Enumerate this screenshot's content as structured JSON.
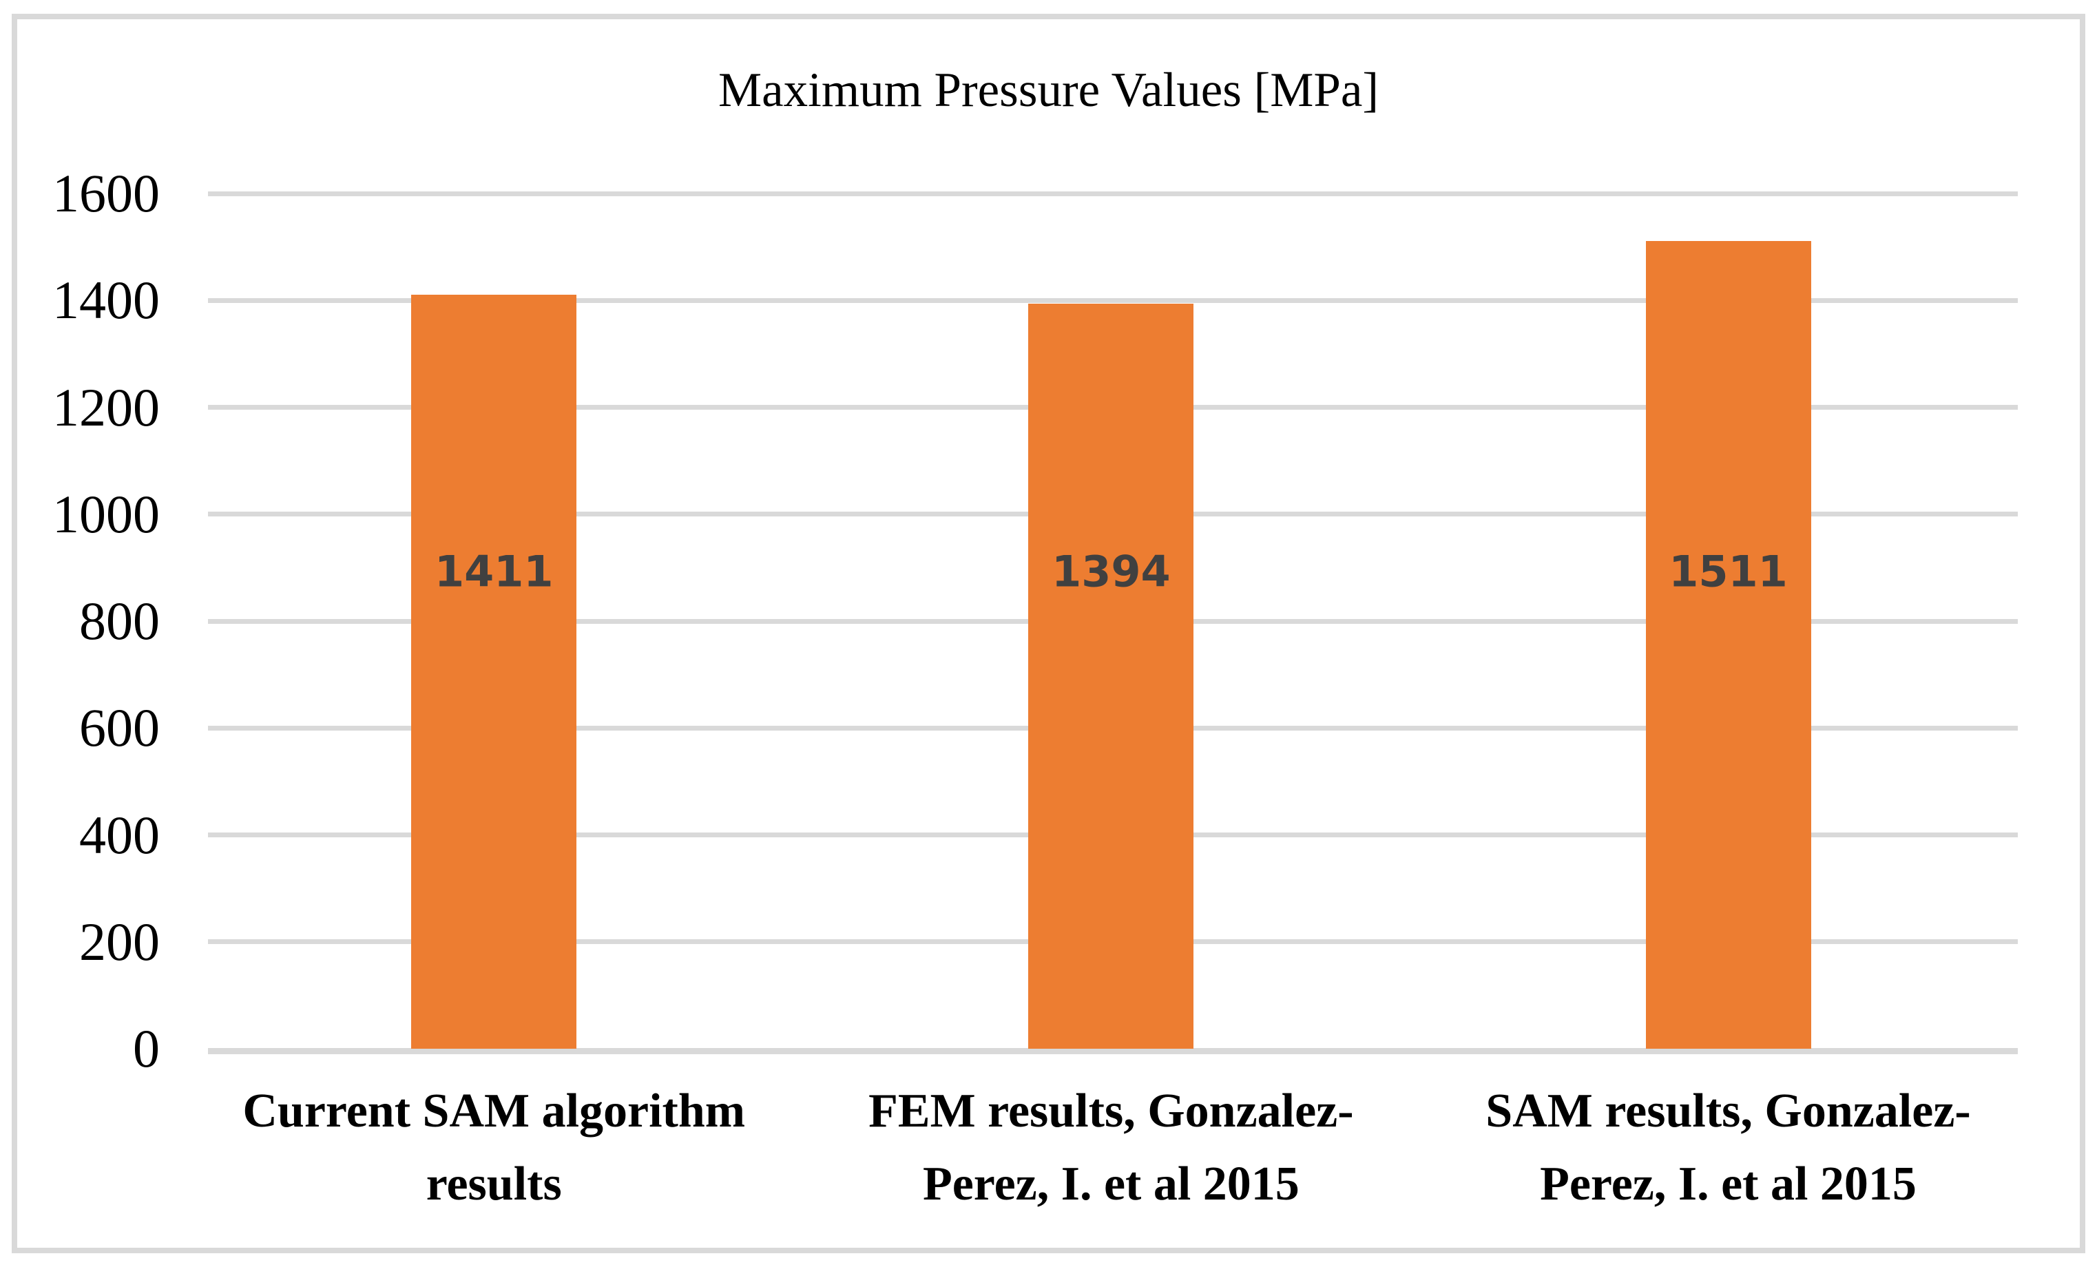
{
  "chart": {
    "title": "Maximum Pressure Values [MPa]"
  },
  "chart_data": {
    "type": "bar",
    "title": "Maximum Pressure Values [MPa]",
    "categories": [
      "Current SAM algorithm results",
      "FEM results, Gonzalez-Perez, I. et al 2015",
      "SAM results, Gonzalez-Perez, I. et al 2015"
    ],
    "values": [
      1411,
      1394,
      1511
    ],
    "data_labels": [
      "1411",
      "1394",
      "1511"
    ],
    "xlabel": "",
    "ylabel": "",
    "ylim": [
      0,
      1600
    ],
    "yticks": [
      0,
      200,
      400,
      600,
      800,
      1000,
      1200,
      1400,
      1600
    ],
    "grid": true,
    "legend": false,
    "bar_color": "#ED7D31",
    "value_label_color": "#404040",
    "gridline_color": "#D9D9D9",
    "axis_text_color": "#000000",
    "frame_border_color": "#D9D9D9"
  }
}
